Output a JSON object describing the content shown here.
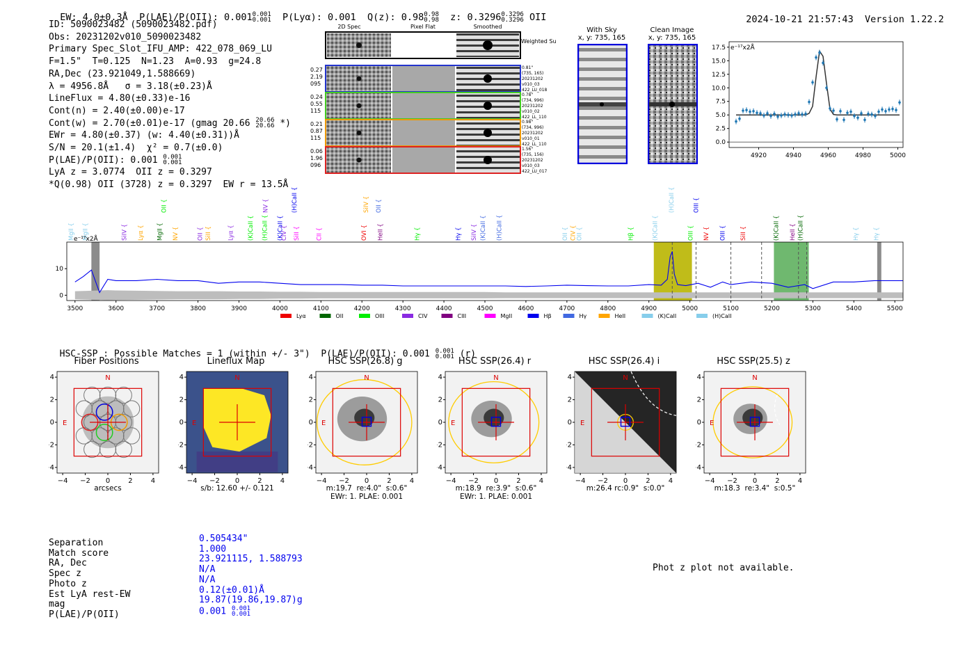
{
  "header": {
    "ew": "EW: 4.0±0.3Å",
    "plae_label": "P(LAE)/P(OII): 0.001",
    "plae_hi": "0.001",
    "plae_lo": "0.001",
    "plya": "P(Lyα): 0.001",
    "qz_label": "Q(z): 0.98",
    "qz_hi": "0.98",
    "qz_lo": "0.98",
    "z_label": "z: 0.3296",
    "z_hi": "0.3296",
    "z_lo": "0.3296",
    "z_line": "OII",
    "timestamp": "2024-10-21 21:57:43",
    "version": "Version 1.22.2"
  },
  "info": {
    "l1": "ID: 5090023482 (5090023482.pdf)",
    "l2": "Obs: 20231202v010_5090023482",
    "l3": "Primary Spec_Slot_IFU_AMP: 422_078_069_LU",
    "l4": "F=1.5\"  T=0.125  N=1.23  A=0.93  g=24.8",
    "l5": "RA,Dec (23.921049,1.588669)",
    "l6": "λ = 4956.8Å   σ = 3.18(±0.23)Å",
    "l7": "LineFlux = 4.80(±0.33)e-16",
    "l8": "Cont(n) = 2.40(±0.00)e-17",
    "l9a": "Cont(w) = 2.70(±0.01)e-17 (gmag 20.66",
    "l9_hi": "20.66",
    "l9_lo": "20.66",
    "l9b": " *)",
    "l10": "EWr = 4.80(±0.37) (w: 4.40(±0.31))Å",
    "l11": "S/N = 20.1(±1.4)  χ² = 0.7(±0.0)",
    "l12a": "P(LAE)/P(OII): 0.001",
    "l12_hi": "0.001",
    "l12_lo": "0.001",
    "l13": "LyA z = 3.0774  OII z = 0.3297",
    "l14": "*Q(0.98) OII (3728) z = 0.3297  EW r = 13.5Å"
  },
  "fiber_panel": {
    "col_titles": [
      "2D Spec",
      "Pixel Flat",
      "Smoothed"
    ],
    "weighted_label": "Weighted Sum",
    "rows": [
      {
        "left": [
          "0.27",
          "2.19",
          "095"
        ],
        "right": [
          "0.81\"",
          "(735, 165)",
          "20231202",
          "v010_03",
          "422_LU_018"
        ],
        "color": "#2233cc"
      },
      {
        "left": [
          "0.24",
          "0.55",
          "115"
        ],
        "right": [
          "0.78\"",
          "(734, 996)",
          "20231202",
          "v010_02",
          "422_LL_110"
        ],
        "color": "#44cc22"
      },
      {
        "left": [
          "0.21",
          "0.87",
          "115"
        ],
        "right": [
          "0.98\"",
          "(734, 996)",
          "20231202",
          "v010_01",
          "422_LL_110"
        ],
        "color": "#ee9900"
      },
      {
        "left": [
          "0.06",
          "1.96",
          "096"
        ],
        "right": [
          "1.56\"",
          "(735, 156)",
          "20231202",
          "v010_03",
          "422_LU_017"
        ],
        "color": "#dd2222"
      }
    ]
  },
  "sky_panels": {
    "with_sky": "With Sky",
    "with_sky_xy": "x, y: 735, 165",
    "clean": "Clean Image",
    "clean_xy": "x, y: 735, 165"
  },
  "lines": {
    "names": [
      "Lyα",
      "OII",
      "OIII",
      "CIV",
      "CIII",
      "MgII",
      "Hβ",
      "Hγ",
      "HeII",
      "(K)CaII",
      "(H)CaII"
    ],
    "colors": [
      "#ee0000",
      "#006600",
      "#00ee00",
      "#8a2be2",
      "#800080",
      "#ff00ff",
      "#0000ee",
      "#4169e1",
      "#ffa500",
      "#87ceeb",
      "#87ceeb"
    ]
  },
  "chart_data": [
    {
      "type": "line",
      "title": "",
      "ylabel": "e⁻¹⁷x2Å",
      "x": [
        4907,
        4909,
        4911,
        4913,
        4915,
        4917,
        4919,
        4921,
        4923,
        4925,
        4927,
        4929,
        4931,
        4933,
        4935,
        4937,
        4939,
        4941,
        4943,
        4945,
        4947,
        4949,
        4951,
        4953,
        4955,
        4957,
        4959,
        4961,
        4963,
        4965,
        4967,
        4969,
        4971,
        4973,
        4975,
        4977,
        4979,
        4981,
        4983,
        4985,
        4987,
        4989,
        4991,
        4993,
        4995,
        4997,
        4999,
        5001
      ],
      "series": [
        {
          "values": [
            3.8,
            4.3,
            5.8,
            5.9,
            5.6,
            5.7,
            5.4,
            5.3,
            4.9,
            5.3,
            4.8,
            5.2,
            4.7,
            4.9,
            5.1,
            5.0,
            4.9,
            5.1,
            5.3,
            5.1,
            5.2,
            7.4,
            11.0,
            15.6,
            16.5,
            14.6,
            10.0,
            6.2,
            5.8,
            4.2,
            5.7,
            4.1,
            5.4,
            5.6,
            4.8,
            4.5,
            5.3,
            4.1,
            5.2,
            5.1,
            4.8,
            5.6,
            6.0,
            5.7,
            6.0,
            6.1,
            5.9,
            7.3
          ]
        },
        {
          "values": [
            5.0,
            5.0,
            5.0,
            5.0,
            5.0,
            5.0,
            5.0,
            5.0,
            5.0,
            5.0,
            5.0,
            5.0,
            5.0,
            5.0,
            5.0,
            5.0,
            5.0,
            5.0,
            5.0,
            5.0,
            5.0,
            5.3,
            6.6,
            12.0,
            16.8,
            15.8,
            10.8,
            6.1,
            5.1,
            5.0,
            5.0,
            5.0,
            5.0,
            5.0,
            5.0,
            5.0,
            5.0,
            5.0,
            5.0,
            5.0,
            5.0,
            5.0,
            5.0,
            5.0,
            5.0,
            5.0,
            5.0,
            5.0
          ]
        }
      ],
      "xlim": [
        4903,
        5003
      ],
      "ylim": [
        -1.0,
        18.5
      ],
      "xticks": [
        4920,
        4940,
        4960,
        4980,
        5000
      ],
      "yticks": [
        0.0,
        2.5,
        5.0,
        7.5,
        10.0,
        12.5,
        15.0,
        17.5
      ],
      "ytick_labels": [
        "0.0",
        "2.5",
        "5.0",
        "7.5",
        "10.0",
        "12.5",
        "15.0",
        "17.5"
      ]
    },
    {
      "type": "line",
      "title": "",
      "ylabel": "e⁻¹⁷x2Å",
      "xlim": [
        3480,
        5520
      ],
      "ylim": [
        -2,
        20
      ],
      "xticks": [
        3500,
        3600,
        3700,
        3800,
        3900,
        4000,
        4100,
        4200,
        4300,
        4400,
        4500,
        4600,
        4700,
        4800,
        4900,
        5000,
        5100,
        5200,
        5300,
        5400,
        5500
      ],
      "yticks": [
        0,
        10
      ],
      "x": [
        3500,
        3520,
        3540,
        3560,
        3580,
        3600,
        3650,
        3700,
        3750,
        3800,
        3850,
        3900,
        3950,
        4000,
        4050,
        4100,
        4150,
        4200,
        4250,
        4300,
        4350,
        4400,
        4450,
        4500,
        4550,
        4600,
        4650,
        4700,
        4750,
        4800,
        4850,
        4900,
        4930,
        4945,
        4952,
        4957,
        4962,
        4970,
        4990,
        5020,
        5050,
        5080,
        5100,
        5150,
        5200,
        5240,
        5280,
        5300,
        5350,
        5400,
        5450,
        5500,
        5520
      ],
      "series": [
        {
          "values": [
            5.0,
            7.0,
            9.5,
            1.0,
            6.0,
            5.5,
            5.5,
            6.0,
            5.5,
            5.5,
            4.5,
            5.0,
            5.0,
            4.5,
            4.0,
            4.0,
            4.0,
            3.8,
            3.8,
            3.5,
            3.5,
            3.5,
            3.5,
            3.5,
            3.5,
            3.3,
            3.5,
            3.8,
            3.6,
            3.5,
            3.5,
            4.0,
            3.8,
            6.0,
            14.5,
            16.5,
            8.0,
            4.0,
            3.6,
            4.5,
            3.0,
            5.0,
            4.0,
            5.0,
            4.5,
            3.0,
            4.0,
            2.5,
            5.0,
            5.0,
            5.5,
            5.5,
            5.5
          ]
        },
        {
          "name": "",
          "values": [
            -1.5,
            -1.6,
            -1.7,
            -1.8,
            -1.9,
            -1.8,
            -1.7,
            -1.6,
            -1.5,
            -1.5,
            -1.5,
            -1.4,
            -1.4,
            -1.3,
            -1.3,
            -1.2,
            -1.2,
            -1.2,
            -1.2,
            -1.2,
            -1.2,
            -1.2,
            -1.2,
            -1.2,
            -1.1,
            -1.1,
            -1.1,
            -1.1,
            -1.1,
            -1.1,
            -1.1,
            -1.1,
            -1.1,
            -1.1,
            -1.1,
            -1.1,
            -1.1,
            -1.1,
            -1.1,
            -1.1,
            -1.1,
            -1.1,
            -1.1,
            -1.1,
            -1.1,
            -1.1,
            -1.1,
            -1.1,
            -1.1,
            -1.1,
            -1.1,
            -1.1,
            -1.1
          ]
        }
      ],
      "highlight_bands": [
        {
          "x0": 4912,
          "x1": 5005,
          "color": "#b9b500"
        },
        {
          "x0": 5205,
          "x1": 5290,
          "color": "#5fb05f"
        },
        {
          "x0": 3540,
          "x1": 3560,
          "color": "#808080"
        },
        {
          "x0": 5457,
          "x1": 5467,
          "color": "#808080"
        }
      ],
      "legend": [
        "Lyα",
        "OII",
        "OIII",
        "CIV",
        "CIII",
        "MgII",
        "Hβ",
        "Hγ",
        "HeII",
        "(K)CaII",
        "(H)CaII"
      ],
      "legend_position": "bottom"
    }
  ],
  "line_labels": [
    {
      "text": "MgII",
      "x": 3495,
      "color": "#87ceeb",
      "row": 1
    },
    {
      "text": "MgII",
      "x": 3530,
      "color": "#87ceeb",
      "row": 1
    },
    {
      "text": "SiIV",
      "x": 3625,
      "color": "#8a2be2",
      "row": 1
    },
    {
      "text": "Lyα",
      "x": 3665,
      "color": "#ffa500",
      "row": 1
    },
    {
      "text": "MgII",
      "x": 3712,
      "color": "#006600",
      "row": 1
    },
    {
      "text": "OII",
      "x": 3722,
      "color": "#00ee00",
      "row": 0
    },
    {
      "text": "NV",
      "x": 3750,
      "color": "#ffa500",
      "row": 1
    },
    {
      "text": "OII",
      "x": 3810,
      "color": "#8a2be2",
      "row": 1
    },
    {
      "text": "SiII",
      "x": 3830,
      "color": "#ffa500",
      "row": 1
    },
    {
      "text": "Lyα",
      "x": 3885,
      "color": "#8a2be2",
      "row": 1
    },
    {
      "text": "(K)CaII",
      "x": 3933,
      "color": "#00ee00",
      "row": 1
    },
    {
      "text": "(H)CaII",
      "x": 3968,
      "color": "#00ee00",
      "row": 1
    },
    {
      "text": "NV",
      "x": 3970,
      "color": "#8a2be2",
      "row": 0
    },
    {
      "text": "(K)CaII",
      "x": 4005,
      "color": "#0000ee",
      "row": 1
    },
    {
      "text": "CIV",
      "x": 4015,
      "color": "#8a2be2",
      "row": 1
    },
    {
      "text": "(H)CaII",
      "x": 4040,
      "color": "#0000ee",
      "row": 0
    },
    {
      "text": "SiII",
      "x": 4045,
      "color": "#ff00ff",
      "row": 1
    },
    {
      "text": "CII",
      "x": 4100,
      "color": "#ff00ff",
      "row": 1
    },
    {
      "text": "OVI",
      "x": 4210,
      "color": "#ee0000",
      "row": 1
    },
    {
      "text": "SiIV",
      "x": 4215,
      "color": "#ffa500",
      "row": 0
    },
    {
      "text": "OII",
      "x": 4245,
      "color": "#4169e1",
      "row": 0
    },
    {
      "text": "HeII",
      "x": 4250,
      "color": "#800080",
      "row": 1
    },
    {
      "text": "Hγ",
      "x": 4340,
      "color": "#00ee00",
      "row": 1
    },
    {
      "text": "Hγ",
      "x": 4440,
      "color": "#0000ee",
      "row": 1
    },
    {
      "text": "SiIV",
      "x": 4478,
      "color": "#8a2be2",
      "row": 1
    },
    {
      "text": "(K)CaII",
      "x": 4500,
      "color": "#4169e1",
      "row": 1
    },
    {
      "text": "(H)CaII",
      "x": 4540,
      "color": "#4169e1",
      "row": 1
    },
    {
      "text": "OII",
      "x": 4700,
      "color": "#87ceeb",
      "row": 1
    },
    {
      "text": "CIV",
      "x": 4720,
      "color": "#ffa500",
      "row": 1
    },
    {
      "text": "OII",
      "x": 4735,
      "color": "#87ceeb",
      "row": 1
    },
    {
      "text": "Hβ",
      "x": 4861,
      "color": "#00ee00",
      "row": 1
    },
    {
      "text": "(K)CaII",
      "x": 4920,
      "color": "#87ceeb",
      "row": 1
    },
    {
      "text": "(H)CaII",
      "x": 4960,
      "color": "#87ceeb",
      "row": 0
    },
    {
      "text": "OIII",
      "x": 5007,
      "color": "#00ee00",
      "row": 1
    },
    {
      "text": "OIII",
      "x": 5020,
      "color": "#0000ee",
      "row": 0
    },
    {
      "text": "NV",
      "x": 5045,
      "color": "#ee0000",
      "row": 1
    },
    {
      "text": "OIII",
      "x": 5085,
      "color": "#0000ee",
      "row": 1
    },
    {
      "text": "SiII",
      "x": 5135,
      "color": "#ee0000",
      "row": 1
    },
    {
      "text": "(K)CaII",
      "x": 5215,
      "color": "#006600",
      "row": 1
    },
    {
      "text": "HeII",
      "x": 5255,
      "color": "#800080",
      "row": 1
    },
    {
      "text": "(H)CaII",
      "x": 5275,
      "color": "#006600",
      "row": 1
    },
    {
      "text": "Hγ",
      "x": 5410,
      "color": "#87ceeb",
      "row": 1
    },
    {
      "text": "Hγ",
      "x": 5460,
      "color": "#87ceeb",
      "row": 1
    }
  ],
  "hsc": {
    "heading_a": "HSC-SSP : Possible Matches = 1 (within +/- 3\")  P(LAE)/P(OII): 0.001",
    "heading_hi": "0.001",
    "heading_lo": "0.001",
    "heading_b": "(r)",
    "panels": [
      {
        "title": "Fiber Positions",
        "caption1": "arcsecs",
        "caption2": ""
      },
      {
        "title": "Lineflux Map",
        "caption1": "s/b: 12.60 +/- 0.121",
        "caption2": ""
      },
      {
        "title": "HSC SSP(26.8) g",
        "caption1": "m:19.7  re:4.0\"  s:0.6\"",
        "caption2": "EWr: 1. PLAE: 0.001"
      },
      {
        "title": "HSC SSP(26.4) r",
        "caption1": "m:18.9  re:3.9\"  s:0.6\"",
        "caption2": "EWr: 1. PLAE: 0.001"
      },
      {
        "title": "HSC SSP(26.4) i",
        "caption1": "m:26.4 rc:0.9\"  s:0.0\"",
        "caption2": ""
      },
      {
        "title": "HSC SSP(25.5) z",
        "caption1": "m:18.3  re:3.4\"  s:0.5\"",
        "caption2": ""
      }
    ],
    "tick_labels_x": [
      "−4",
      "−2",
      "0",
      "2",
      "4"
    ],
    "tick_labels_y": [
      "4",
      "2",
      "0",
      "−2",
      "−4"
    ],
    "north": "N",
    "east": "E"
  },
  "summary": {
    "labels": [
      "Separation",
      "Match score",
      "RA, Dec",
      "Spec z",
      "Photo z",
      "Est LyA rest-EW",
      "mag",
      "P(LAE)/P(OII)"
    ],
    "values": [
      "0.505434\"",
      "1.000",
      "23.921115, 1.588793",
      "N/A",
      "N/A",
      "0.12(±0.01)Å",
      "19.87(19.86,19.87)g",
      "0.001"
    ],
    "plae_hi": "0.001",
    "plae_lo": "0.001",
    "photz_msg": "Phot z plot not available."
  }
}
